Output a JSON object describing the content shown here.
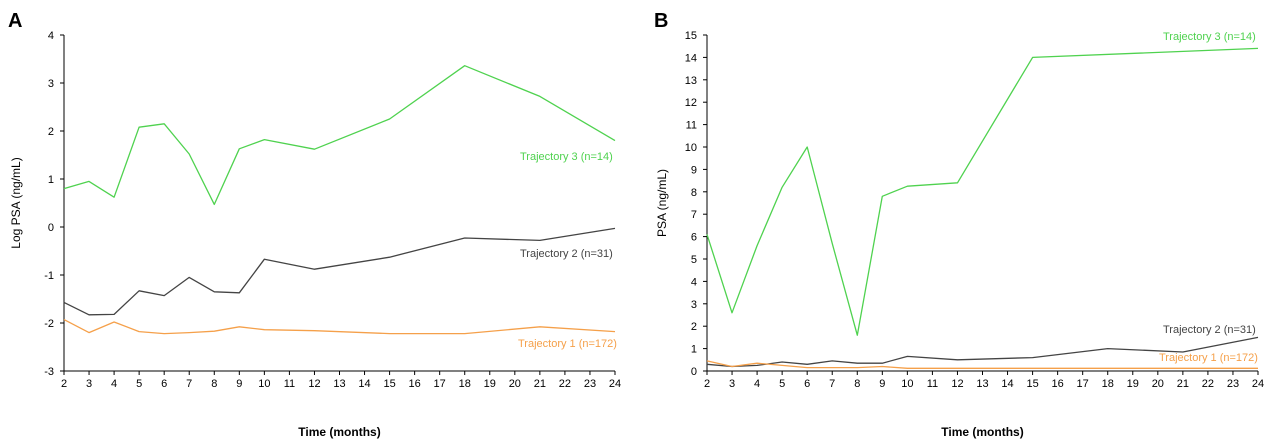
{
  "chart_data": [
    {
      "type": "line",
      "panel": "A",
      "title": "",
      "xlabel": "Time (months)",
      "ylabel": "Log PSA (ng/mL)",
      "x": [
        2,
        3,
        4,
        5,
        6,
        7,
        8,
        9,
        10,
        11,
        12,
        13,
        14,
        15,
        16,
        17,
        18,
        19,
        20,
        21,
        22,
        23,
        24
      ],
      "xlim": [
        2,
        24
      ],
      "ylim": [
        -3,
        4
      ],
      "yticks": [
        -3,
        -2,
        -1,
        0,
        1,
        2,
        3,
        4
      ],
      "grid": false,
      "series": [
        {
          "name": "Trajectory 3 (n=14)",
          "color": "#4fd24f",
          "points": [
            [
              2,
              0.8
            ],
            [
              3,
              0.95
            ],
            [
              4,
              0.62
            ],
            [
              5,
              2.08
            ],
            [
              6,
              2.15
            ],
            [
              7,
              1.52
            ],
            [
              8,
              0.47
            ],
            [
              9,
              1.63
            ],
            [
              10,
              1.82
            ],
            [
              12,
              1.62
            ],
            [
              15,
              2.25
            ],
            [
              18,
              3.36
            ],
            [
              21,
              2.72
            ],
            [
              24,
              1.8
            ]
          ]
        },
        {
          "name": "Trajectory 2 (n=31)",
          "color": "#444444",
          "points": [
            [
              2,
              -1.57
            ],
            [
              3,
              -1.83
            ],
            [
              4,
              -1.82
            ],
            [
              5,
              -1.33
            ],
            [
              6,
              -1.43
            ],
            [
              7,
              -1.05
            ],
            [
              8,
              -1.35
            ],
            [
              9,
              -1.37
            ],
            [
              10,
              -0.67
            ],
            [
              12,
              -0.88
            ],
            [
              15,
              -0.63
            ],
            [
              18,
              -0.23
            ],
            [
              21,
              -0.28
            ],
            [
              24,
              -0.03
            ]
          ]
        },
        {
          "name": "Trajectory 1 (n=172)",
          "color": "#f5a04a",
          "points": [
            [
              2,
              -1.93
            ],
            [
              3,
              -2.2
            ],
            [
              4,
              -1.98
            ],
            [
              5,
              -2.18
            ],
            [
              6,
              -2.22
            ],
            [
              7,
              -2.2
            ],
            [
              8,
              -2.17
            ],
            [
              9,
              -2.08
            ],
            [
              10,
              -2.14
            ],
            [
              12,
              -2.16
            ],
            [
              15,
              -2.22
            ],
            [
              18,
              -2.22
            ],
            [
              21,
              -2.08
            ],
            [
              24,
              -2.18
            ]
          ]
        }
      ]
    },
    {
      "type": "line",
      "panel": "B",
      "title": "",
      "xlabel": "Time (months)",
      "ylabel": "PSA (ng/mL)",
      "x": [
        2,
        3,
        4,
        5,
        6,
        7,
        8,
        9,
        10,
        11,
        12,
        13,
        14,
        15,
        16,
        17,
        18,
        19,
        20,
        21,
        22,
        23,
        24
      ],
      "xlim": [
        2,
        24
      ],
      "ylim": [
        0,
        15
      ],
      "yticks": [
        0,
        1,
        2,
        3,
        4,
        5,
        6,
        7,
        8,
        9,
        10,
        11,
        12,
        13,
        14,
        15
      ],
      "grid": false,
      "series": [
        {
          "name": "Trajectory 3 (n=14)",
          "color": "#4fd24f",
          "points": [
            [
              2,
              6.1
            ],
            [
              3,
              2.6
            ],
            [
              4,
              5.6
            ],
            [
              5,
              8.2
            ],
            [
              6,
              10.0
            ],
            [
              7,
              5.7
            ],
            [
              8,
              1.6
            ],
            [
              9,
              7.8
            ],
            [
              10,
              8.25
            ],
            [
              12,
              8.4
            ],
            [
              15,
              14.0
            ],
            [
              24,
              14.4
            ]
          ]
        },
        {
          "name": "Trajectory 2 (n=31)",
          "color": "#444444",
          "points": [
            [
              2,
              0.3
            ],
            [
              3,
              0.2
            ],
            [
              4,
              0.25
            ],
            [
              5,
              0.4
            ],
            [
              6,
              0.3
            ],
            [
              7,
              0.45
            ],
            [
              8,
              0.35
            ],
            [
              9,
              0.35
            ],
            [
              10,
              0.65
            ],
            [
              12,
              0.5
            ],
            [
              15,
              0.6
            ],
            [
              18,
              1.0
            ],
            [
              21,
              0.85
            ],
            [
              24,
              1.5
            ]
          ]
        },
        {
          "name": "Trajectory 1 (n=172)",
          "color": "#f5a04a",
          "points": [
            [
              2,
              0.45
            ],
            [
              3,
              0.2
            ],
            [
              4,
              0.35
            ],
            [
              5,
              0.25
            ],
            [
              6,
              0.15
            ],
            [
              7,
              0.15
            ],
            [
              8,
              0.15
            ],
            [
              9,
              0.2
            ],
            [
              10,
              0.12
            ],
            [
              12,
              0.12
            ],
            [
              15,
              0.12
            ],
            [
              18,
              0.12
            ],
            [
              21,
              0.12
            ],
            [
              24,
              0.12
            ]
          ]
        }
      ]
    }
  ]
}
